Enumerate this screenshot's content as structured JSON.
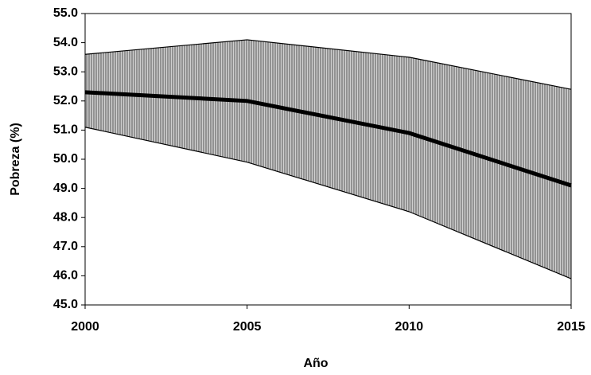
{
  "chart_data": {
    "type": "area",
    "x_label": "Año",
    "y_label": "Pobreza (%)",
    "x": [
      2000,
      2005,
      2010,
      2015
    ],
    "band": {
      "upper": [
        53.6,
        54.1,
        53.5,
        52.4
      ],
      "lower": [
        51.1,
        49.9,
        48.2,
        45.9
      ],
      "color": "#8c8c8c"
    },
    "series": [
      {
        "color": "#000000",
        "values": [
          52.3,
          52.0,
          50.9,
          49.1
        ]
      }
    ],
    "xlim": [
      2000,
      2015
    ],
    "xticks": [
      2000,
      2005,
      2010,
      2015
    ],
    "ylim": [
      45,
      55
    ],
    "yticks": [
      {
        "value": 45,
        "label": "45.0"
      },
      {
        "value": 46,
        "label": "46.0"
      },
      {
        "value": 47,
        "label": "47.0"
      },
      {
        "value": 48,
        "label": "48.0"
      },
      {
        "value": 49,
        "label": "49.0"
      },
      {
        "value": 50,
        "label": "50.0"
      },
      {
        "value": 51,
        "label": "51.0"
      },
      {
        "value": 52,
        "label": "52.0"
      },
      {
        "value": 53,
        "label": "53.0"
      },
      {
        "value": 54,
        "label": "54.0"
      },
      {
        "value": 55,
        "label": "55.0"
      }
    ]
  }
}
